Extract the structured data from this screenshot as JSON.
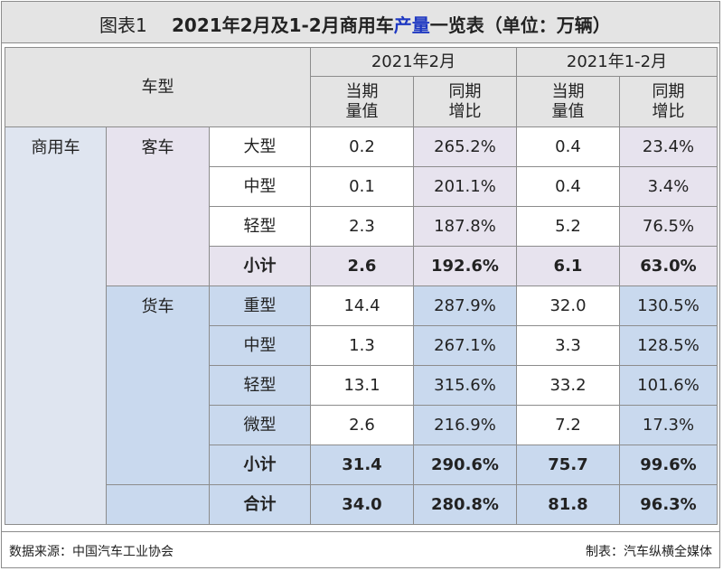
{
  "title": {
    "number": "图表1",
    "prefix": "2021年2月及1-2月商用车",
    "highlight": "产量",
    "suffix": "一览表（单位：万辆）"
  },
  "header": {
    "vehicle_type": "车型",
    "period1": "2021年2月",
    "period2": "2021年1-2月",
    "col_value": [
      "当期",
      "量值"
    ],
    "col_yoy": [
      "同期",
      "增比"
    ]
  },
  "rows": {
    "commercial": "商用车",
    "bus": {
      "label": "客车",
      "items": [
        {
          "name": "大型",
          "v1": "0.2",
          "y1": "265.2%",
          "v2": "0.4",
          "y2": "23.4%"
        },
        {
          "name": "中型",
          "v1": "0.1",
          "y1": "201.1%",
          "v2": "0.4",
          "y2": "3.4%"
        },
        {
          "name": "轻型",
          "v1": "2.3",
          "y1": "187.8%",
          "v2": "5.2",
          "y2": "76.5%"
        }
      ],
      "subtotal": {
        "name": "小计",
        "v1": "2.6",
        "y1": "192.6%",
        "v2": "6.1",
        "y2": "63.0%"
      }
    },
    "truck": {
      "label": "货车",
      "items": [
        {
          "name": "重型",
          "v1": "14.4",
          "y1": "287.9%",
          "v2": "32.0",
          "y2": "130.5%"
        },
        {
          "name": "中型",
          "v1": "1.3",
          "y1": "267.1%",
          "v2": "3.3",
          "y2": "128.5%"
        },
        {
          "name": "轻型",
          "v1": "13.1",
          "y1": "315.6%",
          "v2": "33.2",
          "y2": "101.6%"
        },
        {
          "name": "微型",
          "v1": "2.6",
          "y1": "216.9%",
          "v2": "7.2",
          "y2": "17.3%"
        }
      ],
      "subtotal": {
        "name": "小计",
        "v1": "31.4",
        "y1": "290.6%",
        "v2": "75.7",
        "y2": "99.6%"
      }
    },
    "total": {
      "name": "合计",
      "v1": "34.0",
      "y1": "280.8%",
      "v2": "81.8",
      "y2": "96.3%"
    }
  },
  "footer": {
    "source": "数据来源：中国汽车工业协会",
    "maker": "制表：汽车纵横全媒体"
  }
}
